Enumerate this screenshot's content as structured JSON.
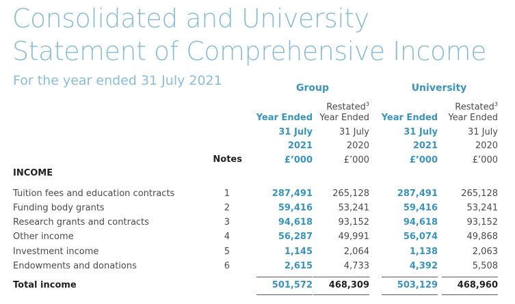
{
  "title": [
    "Consolidated and University",
    "Statement of Comprehensive Income"
  ],
  "subtitle": "For the year ended 31 July 2021",
  "groups": [
    "Group",
    "University"
  ],
  "columns": [
    {
      "lines": [
        "Year Ended",
        "31 July",
        "2021",
        "£’000"
      ]
    },
    {
      "restated": "Restated",
      "footnote": "3",
      "lines": [
        "Year Ended",
        "31 July",
        "2020",
        "£’000"
      ]
    },
    {
      "lines": [
        "Year Ended",
        "31 July",
        "2021",
        "£’000"
      ]
    },
    {
      "restated": "Restated",
      "footnote": "3",
      "lines": [
        "Year Ended",
        "31 July",
        "2020",
        "£’000"
      ]
    }
  ],
  "notes_header": "Notes",
  "section": "INCOME",
  "rows": [
    {
      "label": "Tuition fees and education contracts",
      "note": "1",
      "values": [
        "287,491",
        "265,128",
        "287,491",
        "265,128"
      ]
    },
    {
      "label": "Funding body grants",
      "note": "2",
      "values": [
        "59,416",
        "53,241",
        "59,416",
        "53,241"
      ]
    },
    {
      "label": "Research grants and contracts",
      "note": "3",
      "values": [
        "94,618",
        "93,152",
        "94,618",
        "93,152"
      ]
    },
    {
      "label": "Other income",
      "note": "4",
      "values": [
        "56,287",
        "49,991",
        "56,074",
        "49,868"
      ]
    },
    {
      "label": "Investment income",
      "note": "5",
      "values": [
        "1,145",
        "2,064",
        "1,138",
        "2,063"
      ]
    },
    {
      "label": "Endowments and donations",
      "note": "6",
      "values": [
        "2,615",
        "4,733",
        "4,392",
        "5,508"
      ]
    }
  ],
  "total": {
    "label": "Total income",
    "values": [
      "501,572",
      "468,309",
      "503,129",
      "468,960"
    ]
  }
}
